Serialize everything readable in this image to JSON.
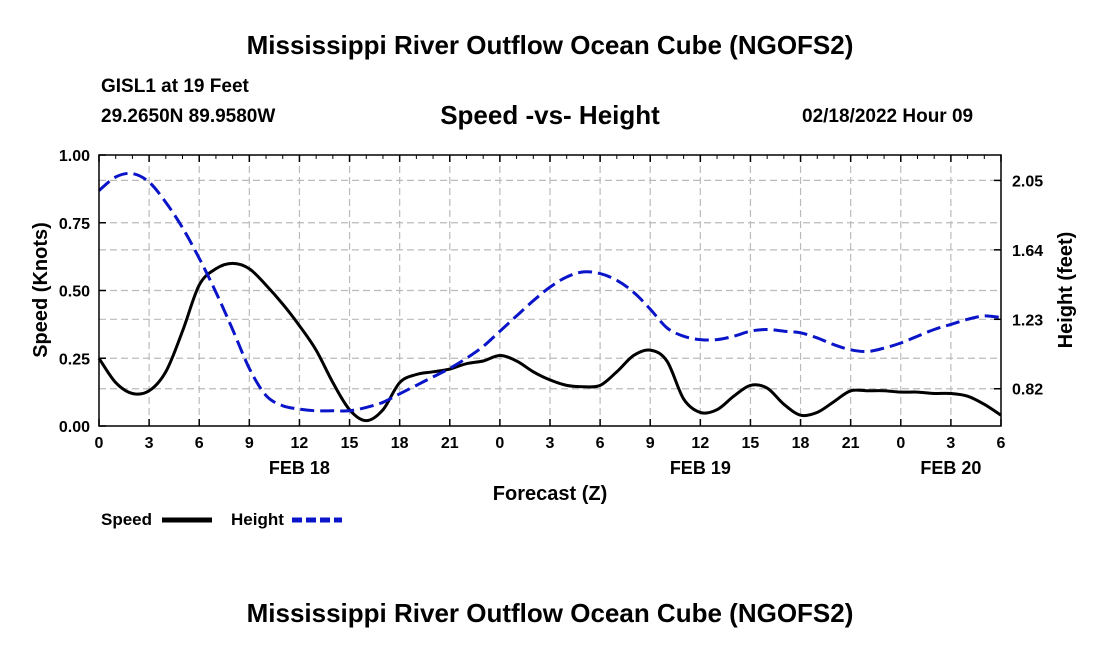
{
  "header": {
    "title": "Mississippi River Outflow Ocean Cube (NGOFS2)",
    "station": "GISL1 at 19 Feet",
    "coords": "29.2650N  89.9580W",
    "subtitle": "Speed -vs- Height",
    "datetime": "02/18/2022 Hour 09"
  },
  "footer": {
    "title": "Mississippi River Outflow Ocean Cube (NGOFS2)"
  },
  "colors": {
    "speed": "#000000",
    "height": "#0a14c8",
    "grid": "#bbbbbb"
  },
  "chart_data": {
    "type": "line",
    "title": "Speed -vs- Height",
    "xlabel": "Forecast (Z)",
    "ylabel": "Speed (Knots)",
    "y2label": "Height (feet)",
    "xlim": [
      0,
      54
    ],
    "ylim": [
      0,
      1.0
    ],
    "y2lim": [
      0.6,
      2.2
    ],
    "grid": true,
    "x_ticks": [
      {
        "x": 0,
        "label": "0"
      },
      {
        "x": 3,
        "label": "3"
      },
      {
        "x": 6,
        "label": "6"
      },
      {
        "x": 9,
        "label": "9"
      },
      {
        "x": 12,
        "label": "12"
      },
      {
        "x": 15,
        "label": "15"
      },
      {
        "x": 18,
        "label": "18"
      },
      {
        "x": 21,
        "label": "21"
      },
      {
        "x": 24,
        "label": "0"
      },
      {
        "x": 27,
        "label": "3"
      },
      {
        "x": 30,
        "label": "6"
      },
      {
        "x": 33,
        "label": "9"
      },
      {
        "x": 36,
        "label": "12"
      },
      {
        "x": 39,
        "label": "15"
      },
      {
        "x": 42,
        "label": "18"
      },
      {
        "x": 45,
        "label": "21"
      },
      {
        "x": 48,
        "label": "0"
      },
      {
        "x": 51,
        "label": "3"
      },
      {
        "x": 54,
        "label": "6"
      }
    ],
    "date_labels": [
      {
        "x": 12,
        "label": "FEB 18"
      },
      {
        "x": 36,
        "label": "FEB 19"
      },
      {
        "x": 51,
        "label": "FEB 20"
      }
    ],
    "y_ticks": [
      {
        "y": 0,
        "label": "0.00"
      },
      {
        "y": 0.25,
        "label": "0.25"
      },
      {
        "y": 0.5,
        "label": "0.50"
      },
      {
        "y": 0.75,
        "label": "0.75"
      },
      {
        "y": 1.0,
        "label": "1.00"
      }
    ],
    "y2_ticks": [
      {
        "y": 0.82,
        "label": "0.82"
      },
      {
        "y": 1.23,
        "label": "1.23"
      },
      {
        "y": 1.64,
        "label": "1.64"
      },
      {
        "y": 2.05,
        "label": "2.05"
      }
    ],
    "legend": [
      {
        "name": "Speed",
        "style": "solid"
      },
      {
        "name": "Height",
        "style": "dashed"
      }
    ],
    "series": [
      {
        "name": "Speed",
        "axis": "left",
        "style": "solid",
        "x": [
          0,
          1,
          2,
          3,
          4,
          5,
          6,
          7,
          8,
          9,
          10,
          11,
          12,
          13,
          14,
          15,
          16,
          17,
          18,
          19,
          20,
          21,
          22,
          23,
          24,
          25,
          26,
          27,
          28,
          29,
          30,
          31,
          32,
          33,
          34,
          35,
          36,
          37,
          38,
          39,
          40,
          41,
          42,
          43,
          44,
          45,
          46,
          47,
          48,
          49,
          50,
          51,
          52,
          53,
          54
        ],
        "values": [
          0.25,
          0.16,
          0.12,
          0.13,
          0.2,
          0.35,
          0.52,
          0.58,
          0.6,
          0.58,
          0.52,
          0.45,
          0.37,
          0.28,
          0.16,
          0.06,
          0.02,
          0.06,
          0.16,
          0.19,
          0.2,
          0.21,
          0.23,
          0.24,
          0.26,
          0.24,
          0.2,
          0.17,
          0.15,
          0.145,
          0.15,
          0.2,
          0.26,
          0.28,
          0.24,
          0.1,
          0.05,
          0.06,
          0.11,
          0.15,
          0.14,
          0.08,
          0.04,
          0.05,
          0.09,
          0.13,
          0.13,
          0.13,
          0.125,
          0.125,
          0.12,
          0.12,
          0.11,
          0.08,
          0.04
        ]
      },
      {
        "name": "Height",
        "axis": "right",
        "style": "dashed",
        "x": [
          0,
          1,
          2,
          3,
          4,
          5,
          6,
          7,
          8,
          9,
          10,
          11,
          12,
          13,
          14,
          15,
          16,
          17,
          18,
          19,
          20,
          21,
          22,
          23,
          24,
          25,
          26,
          27,
          28,
          29,
          30,
          31,
          32,
          33,
          34,
          35,
          36,
          37,
          38,
          39,
          40,
          41,
          42,
          43,
          44,
          45,
          46,
          47,
          48,
          49,
          50,
          51,
          52,
          53,
          54
        ],
        "values": [
          1.99,
          2.07,
          2.09,
          2.04,
          1.92,
          1.77,
          1.59,
          1.39,
          1.17,
          0.94,
          0.78,
          0.72,
          0.7,
          0.69,
          0.69,
          0.69,
          0.71,
          0.74,
          0.79,
          0.84,
          0.89,
          0.94,
          1.0,
          1.07,
          1.16,
          1.25,
          1.34,
          1.42,
          1.48,
          1.51,
          1.5,
          1.46,
          1.39,
          1.29,
          1.18,
          1.13,
          1.11,
          1.11,
          1.13,
          1.16,
          1.17,
          1.16,
          1.15,
          1.12,
          1.08,
          1.05,
          1.04,
          1.06,
          1.09,
          1.13,
          1.17,
          1.2,
          1.23,
          1.25,
          1.24
        ]
      }
    ]
  }
}
